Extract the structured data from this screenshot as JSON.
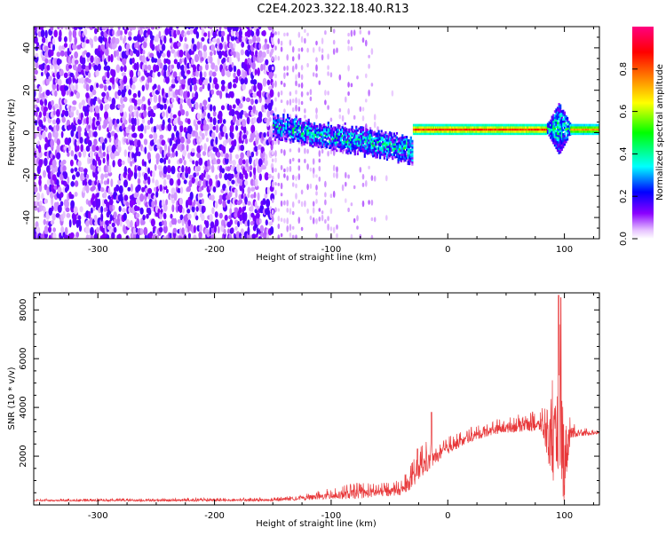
{
  "title": "C2E4.2023.322.18.40.R13",
  "chart_data": [
    {
      "type": "heatmap",
      "xlabel": "Height of straight line (km)",
      "ylabel": "Frequency (Hz)",
      "xlim": [
        -355,
        130
      ],
      "ylim": [
        -50,
        50
      ],
      "x_ticks": [
        -300,
        -200,
        -100,
        0,
        100
      ],
      "x_tick_labels": [
        "-300",
        "-200",
        "-100",
        "0",
        "100"
      ],
      "y_ticks": [
        -40,
        -20,
        0,
        20,
        40
      ],
      "y_tick_labels": [
        "-40",
        "-20",
        "0",
        "20",
        "40"
      ],
      "colorbar": {
        "label": "Normalized spectral amplitude",
        "range": [
          0,
          1
        ],
        "ticks": [
          0.0,
          0.2,
          0.4,
          0.6,
          0.8
        ],
        "tick_labels": [
          "0.0",
          "0.2",
          "0.4",
          "0.6",
          "0.8"
        ],
        "colors": [
          "#ffffff",
          "#e0b0ff",
          "#8a00ff",
          "#0000ff",
          "#00ffff",
          "#00ff00",
          "#ffff00",
          "#ff8000",
          "#ff0000",
          "#ff0080"
        ]
      },
      "regions": [
        {
          "x_range": [
            -355,
            -150
          ],
          "freq_range": [
            -50,
            50
          ],
          "amplitude": 0.1,
          "pattern": "noise"
        },
        {
          "x_range": [
            -150,
            -30
          ],
          "freq_center": [
            3,
            -8
          ],
          "freq_halfwidth": [
            5,
            6
          ],
          "amplitude": 0.35,
          "pattern": "noisy-band"
        },
        {
          "x_range": [
            -30,
            85
          ],
          "freq_center": 1.5,
          "freq_halfwidth": 2,
          "amplitude": 0.85,
          "pattern": "band"
        },
        {
          "x_range": [
            85,
            105
          ],
          "freq_center": 2,
          "freq_halfwidth": 12,
          "amplitude": 0.4,
          "pattern": "spike"
        },
        {
          "x_range": [
            105,
            130
          ],
          "freq_center": 1.5,
          "freq_halfwidth": 2,
          "amplitude": 0.75,
          "pattern": "band"
        }
      ]
    },
    {
      "type": "line",
      "xlabel": "Height of straight line (km)",
      "ylabel": "SNR (10 * v/v)",
      "xlim": [
        -355,
        130
      ],
      "ylim": [
        0,
        8700
      ],
      "x_ticks": [
        -300,
        -200,
        -100,
        0,
        100
      ],
      "x_tick_labels": [
        "-300",
        "-200",
        "-100",
        "0",
        "100"
      ],
      "y_ticks": [
        2000,
        4000,
        6000,
        8000
      ],
      "y_tick_labels": [
        "2000",
        "4000",
        "6000",
        "8000"
      ],
      "color": "#e8383a",
      "envelope": {
        "x": [
          -355,
          -150,
          -120,
          -80,
          -40,
          -30,
          -20,
          -10,
          0,
          20,
          40,
          60,
          80,
          85,
          92,
          96,
          98,
          100,
          105,
          110,
          130
        ],
        "baseline": [
          150,
          150,
          200,
          250,
          400,
          700,
          1200,
          1700,
          2100,
          2600,
          2900,
          3000,
          3000,
          2000,
          400,
          200,
          100,
          200,
          2600,
          2800,
          2900
        ],
        "peak": [
          250,
          300,
          500,
          900,
          1000,
          1800,
          2700,
          2500,
          2800,
          3200,
          3500,
          3700,
          3900,
          4500,
          6500,
          8700,
          8500,
          5500,
          3800,
          3200,
          3100
        ]
      },
      "notable_peaks": [
        {
          "x": 95,
          "y": 8600
        },
        {
          "x": 97,
          "y": 8500
        },
        {
          "x": -14,
          "y": 3800
        },
        {
          "x": -26,
          "y": 2300
        }
      ]
    }
  ]
}
